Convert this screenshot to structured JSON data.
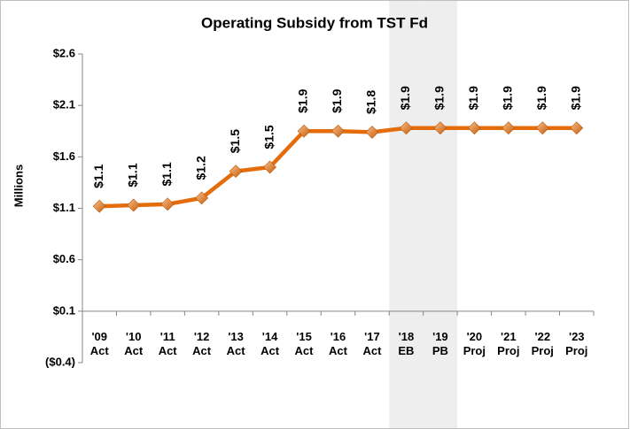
{
  "chart_data": {
    "type": "line",
    "title": "Operating Subsidy from TST Fd",
    "y_label": "Millions",
    "categories": [
      "'09 Act",
      "'10 Act",
      "'11 Act",
      "'12 Act",
      "'13 Act",
      "'14 Act",
      "'15 Act",
      "'16 Act",
      "'17 Act",
      "'18 EB",
      "'19 PB",
      "'20 Proj",
      "'21 Proj",
      "'22 Proj",
      "'23 Proj"
    ],
    "series": [
      {
        "name": "Operating Subsidy",
        "color": "#e46c0a",
        "values": [
          1.12,
          1.13,
          1.14,
          1.2,
          1.46,
          1.5,
          1.85,
          1.85,
          1.84,
          1.88,
          1.88,
          1.88,
          1.88,
          1.88,
          1.88
        ],
        "value_labels": [
          "$1.1",
          "$1.1",
          "$1.1",
          "$1.2",
          "$1.5",
          "$1.5",
          "$1.9",
          "$1.9",
          "$1.8",
          "$1.9",
          "$1.9",
          "$1.9",
          "$1.9",
          "$1.9",
          "$1.9"
        ]
      }
    ],
    "ylim": [
      -0.4,
      2.6
    ],
    "yticks": [
      {
        "value": -0.4,
        "label": "($0.4)"
      },
      {
        "value": 0.1,
        "label": "$0.1"
      },
      {
        "value": 0.6,
        "label": "$0.6"
      },
      {
        "value": 1.1,
        "label": "$1.1"
      },
      {
        "value": 1.6,
        "label": "$1.6"
      },
      {
        "value": 2.1,
        "label": "$2.1"
      },
      {
        "value": 2.6,
        "label": "$2.6"
      }
    ],
    "x_axis_crosses": 0.1,
    "shaded_categories": [
      9,
      10
    ],
    "grid": false
  }
}
